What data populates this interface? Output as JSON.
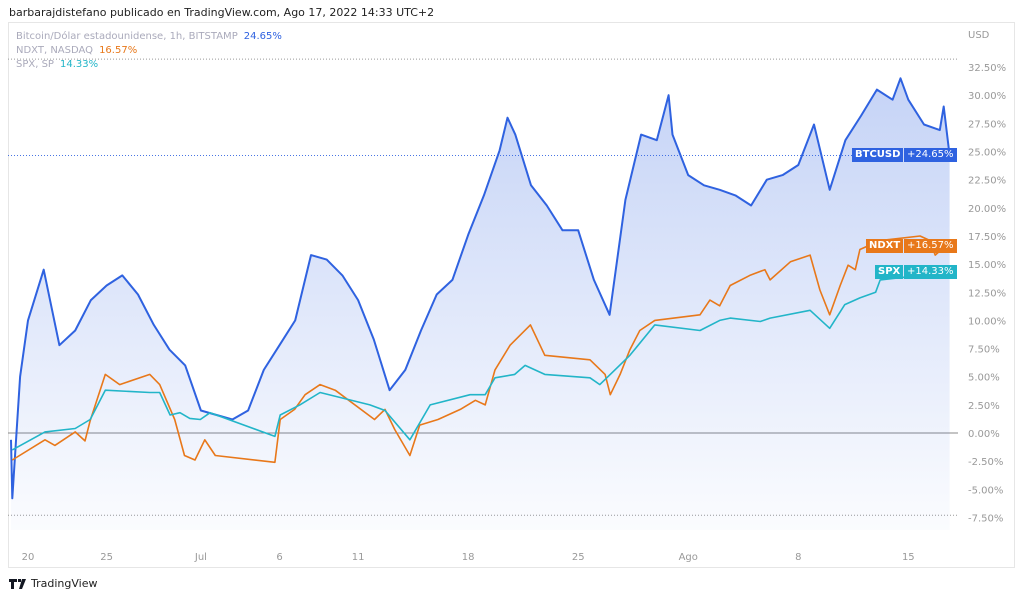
{
  "header": "barbarajdistefano publicado en TradingView.com, Ago 17, 2022 14:33 UTC+2",
  "legend": [
    {
      "label": "Bitcoin/Dólar estadounidense, 1h, BITSTAMP",
      "value": "24.65%",
      "color": "#2f62e0"
    },
    {
      "label": "NDXT, NASDAQ",
      "value": "16.57%",
      "color": "#e8781a"
    },
    {
      "label": "SPX, SP",
      "value": "14.33%",
      "color": "#22b5c8"
    }
  ],
  "footer": "TradingView",
  "chart_data": {
    "type": "line",
    "yunit": "USD",
    "ylim": [
      -7.5,
      32.5
    ],
    "xlim": [
      "2022-06-18 20:00",
      "2022-08-17 15:00"
    ],
    "grid": false,
    "legend_placement": "top-left",
    "y_ticks": [
      "32.50%",
      "30.00%",
      "27.50%",
      "25.00%",
      "22.50%",
      "20.00%",
      "17.50%",
      "15.00%",
      "12.50%",
      "10.00%",
      "7.50%",
      "5.00%",
      "2.50%",
      "0.00%",
      "-2.50%",
      "-5.00%",
      "-7.50%"
    ],
    "x_ticks": [
      {
        "label": "20",
        "date": "2022-06-20"
      },
      {
        "label": "25",
        "date": "2022-06-25"
      },
      {
        "label": "Jul",
        "date": "2022-07-01"
      },
      {
        "label": "6",
        "date": "2022-07-06"
      },
      {
        "label": "11",
        "date": "2022-07-11"
      },
      {
        "label": "18",
        "date": "2022-07-18"
      },
      {
        "label": "25",
        "date": "2022-07-25"
      },
      {
        "label": "Ago",
        "date": "2022-08-01"
      },
      {
        "label": "8",
        "date": "2022-08-08"
      },
      {
        "label": "15",
        "date": "2022-08-15"
      }
    ],
    "series": [
      {
        "name": "BTCUSD",
        "last_label": "+24.65%",
        "color": "#2f62e0",
        "points": [
          [
            "2022-06-18 22:00",
            -0.6
          ],
          [
            "2022-06-19 00:00",
            -5.8
          ],
          [
            "2022-06-19 12:00",
            5.0
          ],
          [
            "2022-06-20 00:00",
            10.0
          ],
          [
            "2022-06-21 00:00",
            14.5
          ],
          [
            "2022-06-22 00:00",
            7.8
          ],
          [
            "2022-06-23 00:00",
            9.1
          ],
          [
            "2022-06-24 00:00",
            11.8
          ],
          [
            "2022-06-25 00:00",
            13.1
          ],
          [
            "2022-06-26 00:00",
            14.0
          ],
          [
            "2022-06-27 00:00",
            12.3
          ],
          [
            "2022-06-28 00:00",
            9.6
          ],
          [
            "2022-06-29 00:00",
            7.4
          ],
          [
            "2022-06-30 00:00",
            6.0
          ],
          [
            "2022-07-01 00:00",
            2.0
          ],
          [
            "2022-07-02 00:00",
            1.6
          ],
          [
            "2022-07-03 00:00",
            1.2
          ],
          [
            "2022-07-04 00:00",
            2.0
          ],
          [
            "2022-07-05 00:00",
            5.6
          ],
          [
            "2022-07-06 00:00",
            7.8
          ],
          [
            "2022-07-07 00:00",
            10.0
          ],
          [
            "2022-07-08 00:00",
            15.8
          ],
          [
            "2022-07-09 00:00",
            15.4
          ],
          [
            "2022-07-10 00:00",
            14.0
          ],
          [
            "2022-07-11 00:00",
            11.8
          ],
          [
            "2022-07-12 00:00",
            8.3
          ],
          [
            "2022-07-13 00:00",
            3.8
          ],
          [
            "2022-07-14 00:00",
            5.6
          ],
          [
            "2022-07-15 00:00",
            9.1
          ],
          [
            "2022-07-16 00:00",
            12.3
          ],
          [
            "2022-07-17 00:00",
            13.6
          ],
          [
            "2022-07-18 00:00",
            17.6
          ],
          [
            "2022-07-19 00:00",
            21.1
          ],
          [
            "2022-07-20 00:00",
            25.1
          ],
          [
            "2022-07-20 12:00",
            28.0
          ],
          [
            "2022-07-21 00:00",
            26.5
          ],
          [
            "2022-07-22 00:00",
            22.0
          ],
          [
            "2022-07-23 00:00",
            20.2
          ],
          [
            "2022-07-24 00:00",
            18.0
          ],
          [
            "2022-07-25 00:00",
            18.0
          ],
          [
            "2022-07-26 00:00",
            13.6
          ],
          [
            "2022-07-27 00:00",
            10.5
          ],
          [
            "2022-07-28 00:00",
            20.7
          ],
          [
            "2022-07-29 00:00",
            26.5
          ],
          [
            "2022-07-30 00:00",
            26.0
          ],
          [
            "2022-07-30 18:00",
            30.0
          ],
          [
            "2022-07-31 00:00",
            26.5
          ],
          [
            "2022-08-01 00:00",
            22.9
          ],
          [
            "2022-08-02 00:00",
            22.0
          ],
          [
            "2022-08-03 00:00",
            21.6
          ],
          [
            "2022-08-04 00:00",
            21.1
          ],
          [
            "2022-08-05 00:00",
            20.2
          ],
          [
            "2022-08-06 00:00",
            22.5
          ],
          [
            "2022-08-07 00:00",
            22.9
          ],
          [
            "2022-08-08 00:00",
            23.8
          ],
          [
            "2022-08-09 00:00",
            27.4
          ],
          [
            "2022-08-10 00:00",
            21.6
          ],
          [
            "2022-08-11 00:00",
            26.0
          ],
          [
            "2022-08-12 00:00",
            28.2
          ],
          [
            "2022-08-13 00:00",
            30.5
          ],
          [
            "2022-08-14 00:00",
            29.6
          ],
          [
            "2022-08-14 12:00",
            31.5
          ],
          [
            "2022-08-15 00:00",
            29.6
          ],
          [
            "2022-08-16 00:00",
            27.4
          ],
          [
            "2022-08-17 00:00",
            26.9
          ],
          [
            "2022-08-17 06:00",
            29.0
          ],
          [
            "2022-08-17 15:00",
            24.65
          ]
        ]
      },
      {
        "name": "NDXT",
        "last_label": "+16.57%",
        "color": "#e8781a",
        "points": [
          [
            "2022-06-19 00:00",
            -2.4
          ],
          [
            "2022-06-21 02:00",
            -0.6
          ],
          [
            "2022-06-21 17:00",
            -1.1
          ],
          [
            "2022-06-23 00:00",
            0.1
          ],
          [
            "2022-06-23 15:00",
            -0.7
          ],
          [
            "2022-06-23 23:00",
            1.1
          ],
          [
            "2022-06-24 22:00",
            5.2
          ],
          [
            "2022-06-25 20:00",
            4.3
          ],
          [
            "2022-06-27 18:00",
            5.2
          ],
          [
            "2022-06-28 09:00",
            4.3
          ],
          [
            "2022-06-29 08:00",
            1.2
          ],
          [
            "2022-06-29 23:00",
            -2.0
          ],
          [
            "2022-06-30 15:00",
            -2.4
          ],
          [
            "2022-07-01 06:00",
            -0.6
          ],
          [
            "2022-07-01 22:00",
            -2.0
          ],
          [
            "2022-07-05 17:00",
            -2.6
          ],
          [
            "2022-07-06 01:00",
            1.2
          ],
          [
            "2022-07-06 23:00",
            2.1
          ],
          [
            "2022-07-07 15:00",
            3.4
          ],
          [
            "2022-07-08 14:00",
            4.3
          ],
          [
            "2022-07-09 13:00",
            3.8
          ],
          [
            "2022-07-12 01:00",
            1.2
          ],
          [
            "2022-07-12 17:00",
            2.1
          ],
          [
            "2022-07-13 08:00",
            0.3
          ],
          [
            "2022-07-14 07:00",
            -2.0
          ],
          [
            "2022-07-14 22:00",
            0.7
          ],
          [
            "2022-07-16 02:00",
            1.2
          ],
          [
            "2022-07-17 12:00",
            2.1
          ],
          [
            "2022-07-18 11:00",
            2.9
          ],
          [
            "2022-07-19 02:00",
            2.5
          ],
          [
            "2022-07-19 17:00",
            5.6
          ],
          [
            "2022-07-20 16:00",
            7.8
          ],
          [
            "2022-07-21 23:00",
            9.6
          ],
          [
            "2022-07-22 21:00",
            6.9
          ],
          [
            "2022-07-25 18:00",
            6.5
          ],
          [
            "2022-07-26 17:00",
            5.2
          ],
          [
            "2022-07-27 01:00",
            3.4
          ],
          [
            "2022-07-27 16:00",
            5.2
          ],
          [
            "2022-07-28 07:00",
            7.4
          ],
          [
            "2022-07-28 22:00",
            9.1
          ],
          [
            "2022-07-29 21:00",
            10.0
          ],
          [
            "2022-08-01 18:00",
            10.5
          ],
          [
            "2022-08-02 09:00",
            11.8
          ],
          [
            "2022-08-03 00:00",
            11.3
          ],
          [
            "2022-08-03 16:00",
            13.1
          ],
          [
            "2022-08-04 22:00",
            14.0
          ],
          [
            "2022-08-05 21:00",
            14.5
          ],
          [
            "2022-08-06 05:00",
            13.6
          ],
          [
            "2022-08-07 12:00",
            15.2
          ],
          [
            "2022-08-08 18:00",
            15.8
          ],
          [
            "2022-08-09 09:00",
            12.7
          ],
          [
            "2022-08-10 00:00",
            10.5
          ],
          [
            "2022-08-10 16:00",
            13.1
          ],
          [
            "2022-08-11 04:00",
            14.9
          ],
          [
            "2022-08-11 15:00",
            14.5
          ],
          [
            "2022-08-11 22:00",
            16.3
          ],
          [
            "2022-08-13 05:00",
            17.1
          ],
          [
            "2022-08-15 18:00",
            17.5
          ],
          [
            "2022-08-16 09:00",
            17.1
          ],
          [
            "2022-08-16 17:00",
            15.8
          ],
          [
            "2022-08-17 08:00",
            16.57
          ]
        ]
      },
      {
        "name": "SPX",
        "last_label": "+14.33%",
        "color": "#22b5c8",
        "points": [
          [
            "2022-06-19 00:00",
            -1.5
          ],
          [
            "2022-06-21 02:00",
            0.1
          ],
          [
            "2022-06-23 00:00",
            0.4
          ],
          [
            "2022-06-23 23:00",
            1.2
          ],
          [
            "2022-06-24 22:00",
            3.8
          ],
          [
            "2022-06-27 18:00",
            3.6
          ],
          [
            "2022-06-28 09:00",
            3.6
          ],
          [
            "2022-06-29 01:00",
            1.6
          ],
          [
            "2022-06-29 16:00",
            1.8
          ],
          [
            "2022-06-30 07:00",
            1.3
          ],
          [
            "2022-06-30 23:00",
            1.2
          ],
          [
            "2022-07-01 14:00",
            1.8
          ],
          [
            "2022-07-05 17:00",
            -0.3
          ],
          [
            "2022-07-06 01:00",
            1.6
          ],
          [
            "2022-07-07 07:00",
            2.5
          ],
          [
            "2022-07-08 14:00",
            3.6
          ],
          [
            "2022-07-11 18:00",
            2.5
          ],
          [
            "2022-07-12 17:00",
            2.0
          ],
          [
            "2022-07-14 07:00",
            -0.6
          ],
          [
            "2022-07-15 14:00",
            2.5
          ],
          [
            "2022-07-18 03:00",
            3.4
          ],
          [
            "2022-07-19 02:00",
            3.4
          ],
          [
            "2022-07-19 17:00",
            4.9
          ],
          [
            "2022-07-20 23:00",
            5.2
          ],
          [
            "2022-07-21 15:00",
            6.0
          ],
          [
            "2022-07-22 21:00",
            5.2
          ],
          [
            "2022-07-25 18:00",
            4.9
          ],
          [
            "2022-07-26 09:00",
            4.3
          ],
          [
            "2022-07-27 08:00",
            5.6
          ],
          [
            "2022-07-28 07:00",
            6.9
          ],
          [
            "2022-07-29 21:00",
            9.6
          ],
          [
            "2022-08-01 18:00",
            9.1
          ],
          [
            "2022-08-03 00:00",
            10.0
          ],
          [
            "2022-08-03 16:00",
            10.2
          ],
          [
            "2022-08-05 14:00",
            9.9
          ],
          [
            "2022-08-06 05:00",
            10.2
          ],
          [
            "2022-08-08 18:00",
            10.9
          ],
          [
            "2022-08-10 00:00",
            9.3
          ],
          [
            "2022-08-10 23:00",
            11.4
          ],
          [
            "2022-08-11 22:00",
            12.0
          ],
          [
            "2022-08-12 22:00",
            12.5
          ],
          [
            "2022-08-13 05:00",
            13.6
          ],
          [
            "2022-08-15 18:00",
            14.0
          ],
          [
            "2022-08-16 09:00",
            13.8
          ],
          [
            "2022-08-17 08:00",
            14.33
          ]
        ]
      }
    ]
  }
}
